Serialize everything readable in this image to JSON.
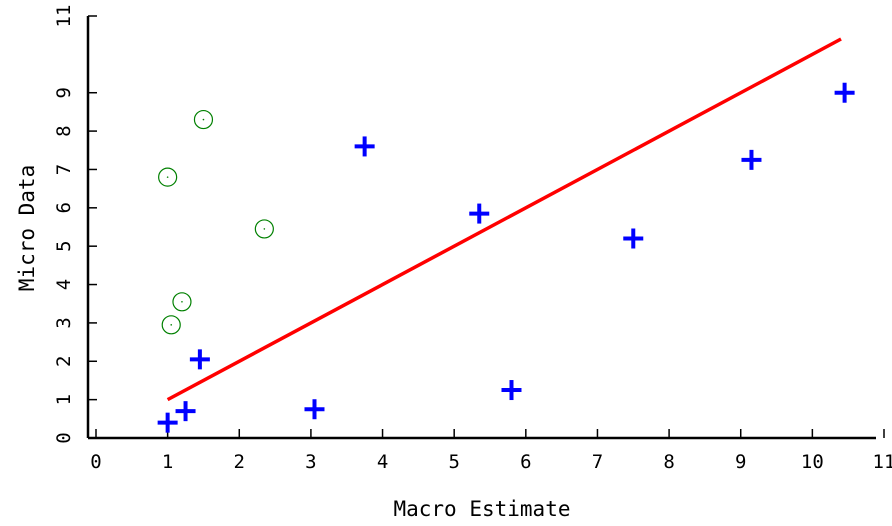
{
  "chart_data": {
    "type": "scatter",
    "xlabel": "Macro Estimate",
    "ylabel": "Micro Data",
    "xlim": [
      0,
      11
    ],
    "ylim": [
      0,
      11
    ],
    "x_ticks": [
      "0",
      "1",
      "2",
      "3",
      "4",
      "5",
      "6",
      "7",
      "8",
      "9",
      "10",
      "11"
    ],
    "y_ticks": [
      "0",
      "1",
      "2",
      "3",
      "4",
      "5",
      "6",
      "7",
      "8",
      "9",
      "11"
    ],
    "grid": false,
    "legend": "none",
    "series": [
      {
        "marker": "plus",
        "color": "#0000ff",
        "points": [
          {
            "x": 1.0,
            "y": 0.4
          },
          {
            "x": 1.25,
            "y": 0.7
          },
          {
            "x": 1.45,
            "y": 2.05
          },
          {
            "x": 3.05,
            "y": 0.75
          },
          {
            "x": 3.75,
            "y": 7.6
          },
          {
            "x": 5.35,
            "y": 5.85
          },
          {
            "x": 5.8,
            "y": 1.25
          },
          {
            "x": 7.5,
            "y": 5.2
          },
          {
            "x": 9.15,
            "y": 7.25
          },
          {
            "x": 10.45,
            "y": 9.0
          }
        ]
      },
      {
        "marker": "open-circle",
        "color": "#008000",
        "points": [
          {
            "x": 1.0,
            "y": 6.8
          },
          {
            "x": 1.5,
            "y": 8.3
          },
          {
            "x": 2.35,
            "y": 5.45
          },
          {
            "x": 1.2,
            "y": 3.55
          },
          {
            "x": 1.05,
            "y": 2.95
          }
        ]
      }
    ],
    "fit_line": {
      "color": "#ff0000",
      "x": [
        1.0,
        10.4
      ],
      "y": [
        1.0,
        10.4
      ]
    }
  }
}
